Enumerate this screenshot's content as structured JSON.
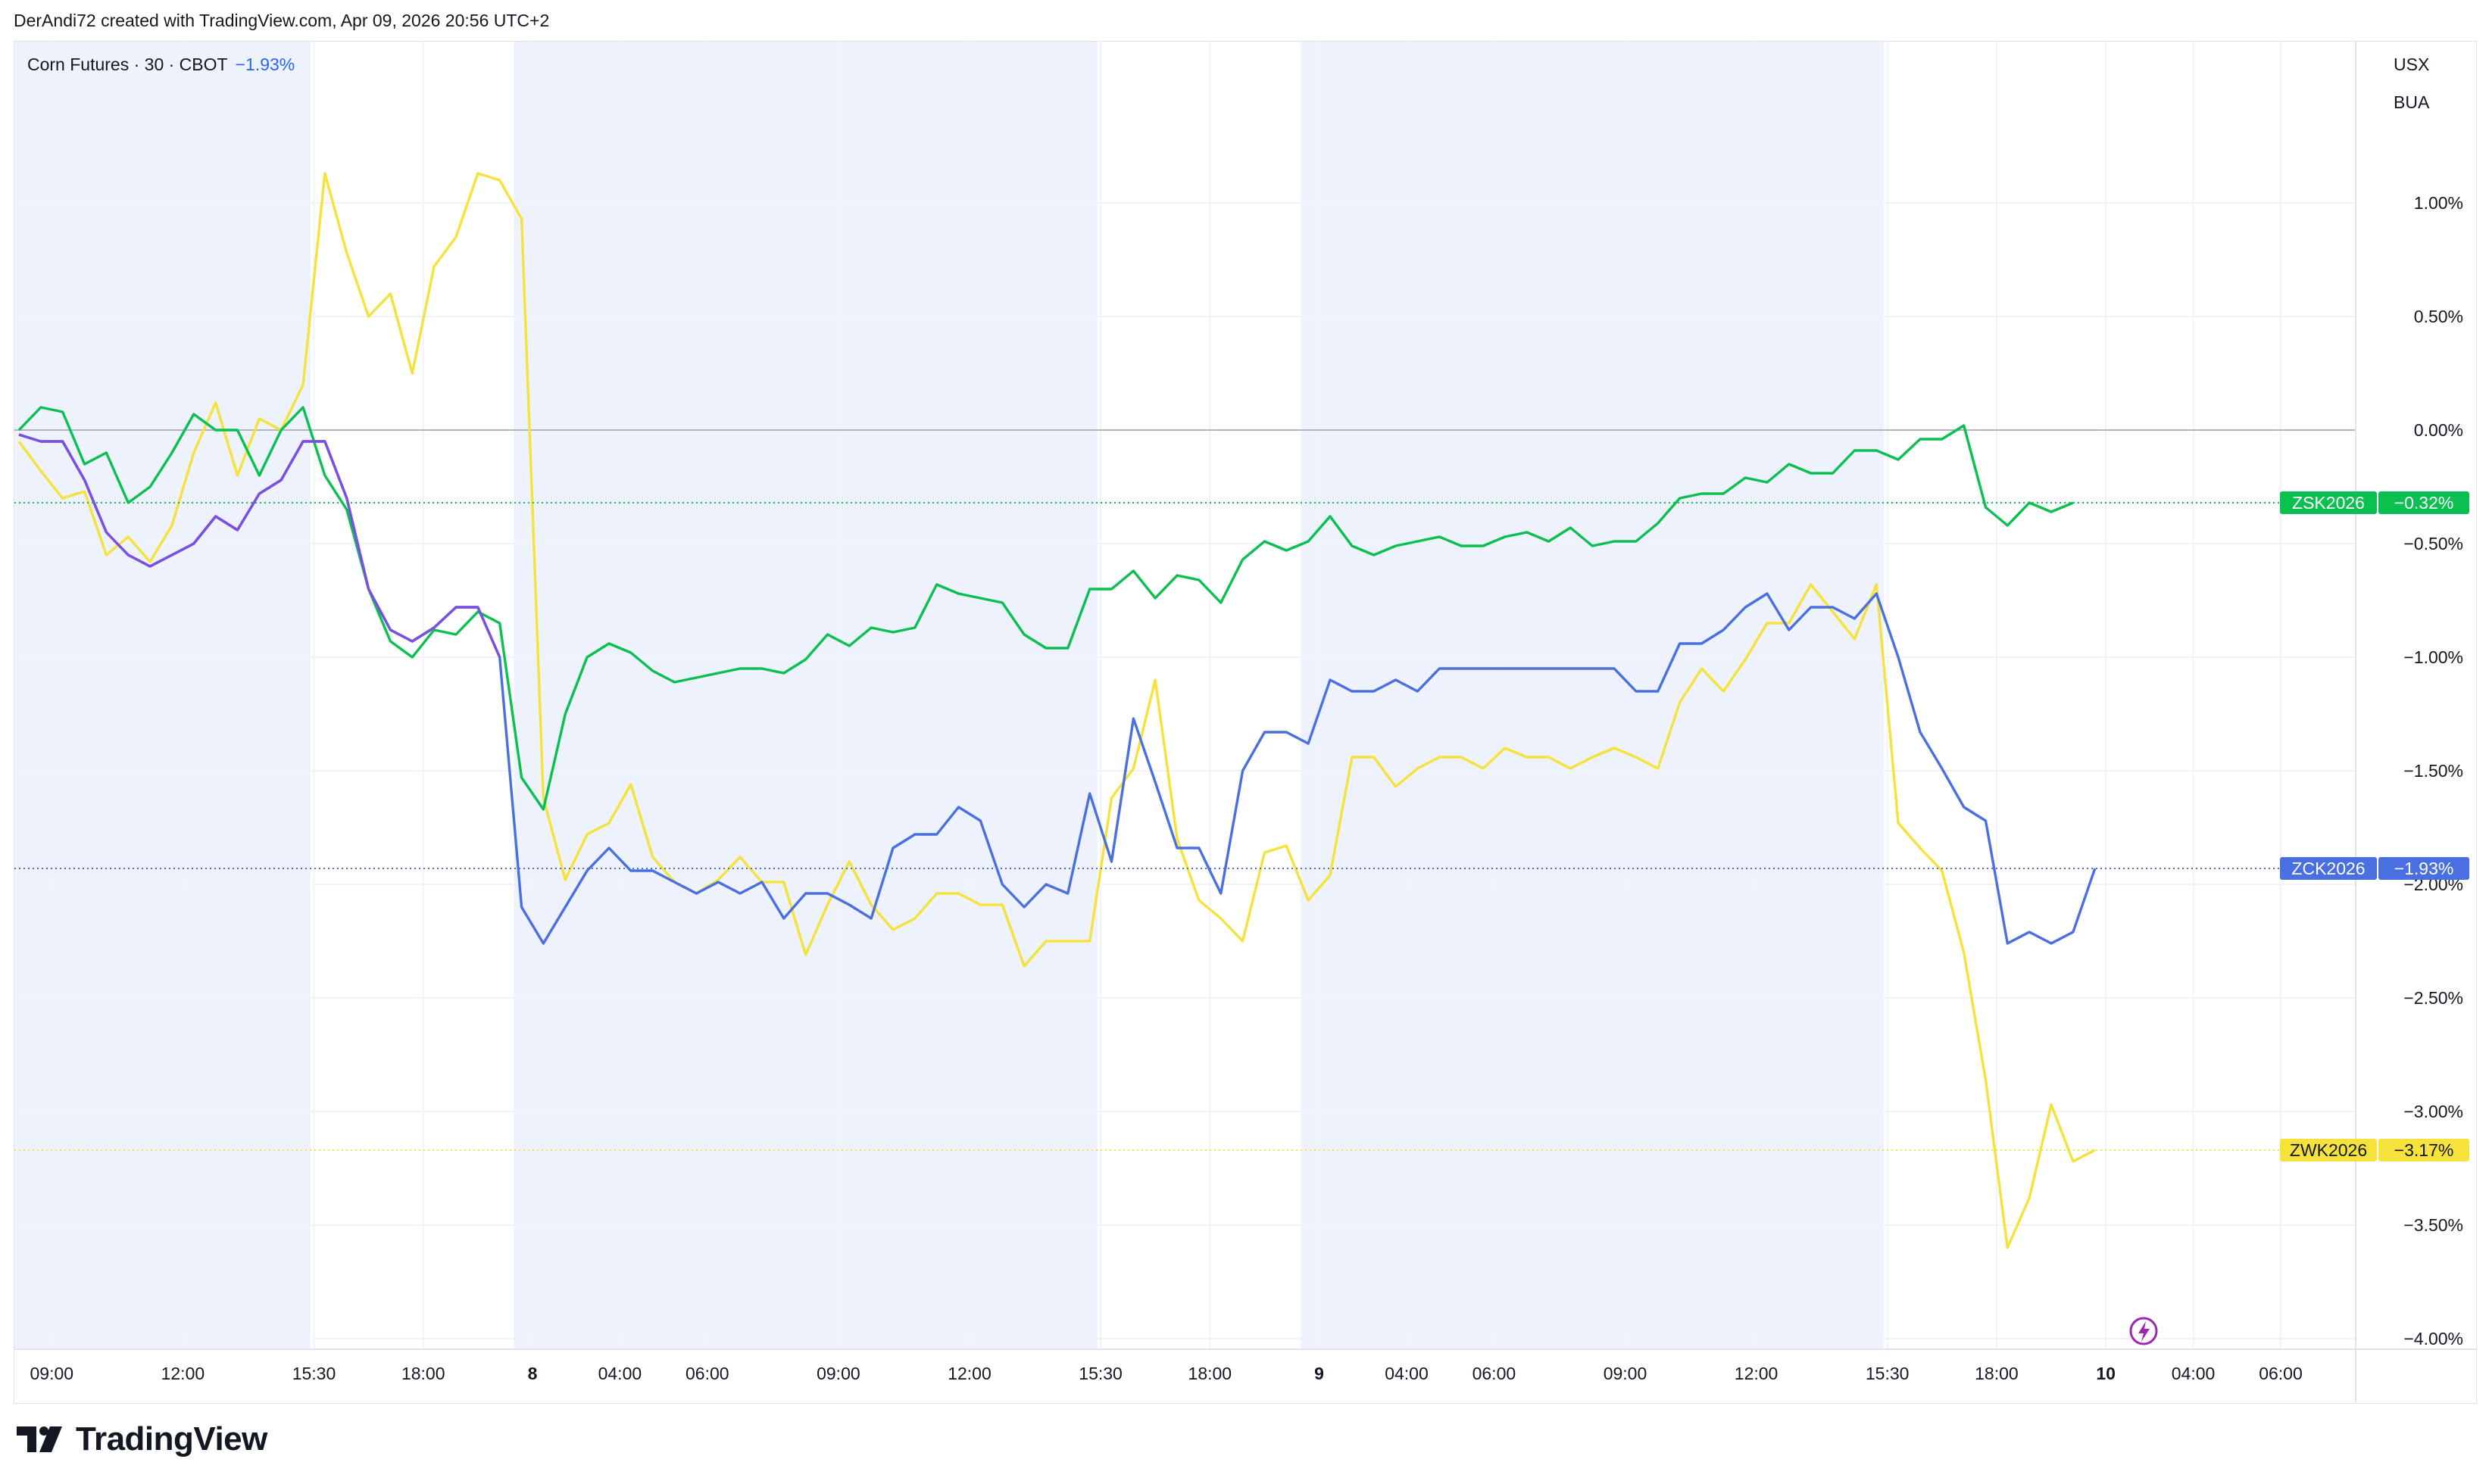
{
  "header": {
    "attribution": "DerAndi72 created with TradingView.com, Apr 09, 2026 20:56 UTC+2"
  },
  "legend": {
    "symbol": "Corn Futures · 30 · CBOT",
    "change": "−1.93%"
  },
  "units": [
    "USX",
    "BUA"
  ],
  "footer": {
    "brand": "TradingView"
  },
  "colors": {
    "ZSK2026": "#0bbf50",
    "ZCK2026": "#4a6fe0",
    "ZWK2026": "#f5e23a",
    "purple": "#7b4fe0",
    "session_shade": "#edf2fd",
    "grid": "#f0f3fa",
    "zero_line": "#b2b5be"
  },
  "chart_data": {
    "type": "line",
    "title": "Corn Futures · 30 · CBOT",
    "y_unit": "%",
    "ylim": [
      -4.05,
      1.3
    ],
    "y_ticks": [
      "1.00%",
      "0.50%",
      "0.00%",
      "−0.50%",
      "−1.00%",
      "−1.50%",
      "−2.00%",
      "−2.50%",
      "−3.00%",
      "−3.50%",
      "−4.00%"
    ],
    "y_tick_values": [
      1.0,
      0.5,
      0.0,
      -0.5,
      -1.0,
      -1.5,
      -2.0,
      -2.5,
      -3.0,
      -3.5,
      -4.0
    ],
    "x_index_range": [
      0,
      105
    ],
    "x_ticks": [
      {
        "label": "09:00",
        "i": 1.5,
        "bold": false
      },
      {
        "label": "12:00",
        "i": 7.5,
        "bold": false
      },
      {
        "label": "15:30",
        "i": 13.5,
        "bold": false
      },
      {
        "label": "18:00",
        "i": 18.5,
        "bold": false
      },
      {
        "label": "8",
        "i": 23.5,
        "bold": true
      },
      {
        "label": "04:00",
        "i": 27.5,
        "bold": false
      },
      {
        "label": "06:00",
        "i": 31.5,
        "bold": false
      },
      {
        "label": "09:00",
        "i": 37.5,
        "bold": false
      },
      {
        "label": "12:00",
        "i": 43.5,
        "bold": false
      },
      {
        "label": "15:30",
        "i": 49.5,
        "bold": false
      },
      {
        "label": "18:00",
        "i": 54.5,
        "bold": false
      },
      {
        "label": "9",
        "i": 59.5,
        "bold": true
      },
      {
        "label": "04:00",
        "i": 63.5,
        "bold": false
      },
      {
        "label": "06:00",
        "i": 67.5,
        "bold": false
      },
      {
        "label": "09:00",
        "i": 73.5,
        "bold": false
      },
      {
        "label": "12:00",
        "i": 79.5,
        "bold": false
      },
      {
        "label": "15:30",
        "i": 85.5,
        "bold": false
      },
      {
        "label": "18:00",
        "i": 90.5,
        "bold": false
      },
      {
        "label": "10",
        "i": 95.5,
        "bold": true
      },
      {
        "label": "04:00",
        "i": 99.5,
        "bold": false
      },
      {
        "label": "06:00",
        "i": 103.5,
        "bold": false
      }
    ],
    "sessions": [
      [
        0,
        13
      ],
      [
        23,
        49
      ],
      [
        59,
        85
      ]
    ],
    "series": [
      {
        "name": "ZSK2026",
        "last_label": "−0.32%",
        "values": [
          0.0,
          0.1,
          0.08,
          -0.15,
          -0.1,
          -0.32,
          -0.25,
          -0.1,
          0.07,
          0.0,
          0.0,
          -0.2,
          0.0,
          0.1,
          -0.2,
          -0.35,
          -0.7,
          -0.93,
          -1.0,
          -0.88,
          -0.9,
          -0.8,
          -0.85,
          -1.53,
          -1.67,
          -1.25,
          -1.0,
          -0.94,
          -0.98,
          -1.06,
          -1.11,
          -1.09,
          -1.07,
          -1.05,
          -1.05,
          -1.07,
          -1.01,
          -0.9,
          -0.95,
          -0.87,
          -0.89,
          -0.87,
          -0.68,
          -0.72,
          -0.74,
          -0.76,
          -0.9,
          -0.96,
          -0.96,
          -0.7,
          -0.7,
          -0.62,
          -0.74,
          -0.64,
          -0.66,
          -0.76,
          -0.57,
          -0.49,
          -0.53,
          -0.49,
          -0.38,
          -0.51,
          -0.55,
          -0.51,
          -0.49,
          -0.47,
          -0.51,
          -0.51,
          -0.47,
          -0.45,
          -0.49,
          -0.43,
          -0.51,
          -0.49,
          -0.49,
          -0.41,
          -0.3,
          -0.28,
          -0.28,
          -0.21,
          -0.23,
          -0.15,
          -0.19,
          -0.19,
          -0.09,
          -0.09,
          -0.13,
          -0.04,
          -0.04,
          0.02,
          -0.34,
          -0.42,
          -0.32,
          -0.36,
          -0.32
        ]
      },
      {
        "name": "ZCK2026",
        "last_label": "−1.93%",
        "values": [
          -0.02,
          -0.05,
          -0.05,
          -0.22,
          -0.45,
          -0.55,
          -0.6,
          -0.55,
          -0.5,
          -0.38,
          -0.44,
          -0.28,
          -0.22,
          -0.05,
          -0.05,
          -0.3,
          -0.7,
          -0.88,
          -0.93,
          -0.87,
          -0.78,
          -0.78,
          -1.0,
          -2.1,
          -2.26,
          -2.1,
          -1.94,
          -1.84,
          -1.94,
          -1.94,
          -1.99,
          -2.04,
          -1.99,
          -2.04,
          -1.99,
          -2.15,
          -2.04,
          -2.04,
          -2.09,
          -2.15,
          -1.84,
          -1.78,
          -1.78,
          -1.66,
          -1.72,
          -2.0,
          -2.1,
          -2.0,
          -2.04,
          -1.6,
          -1.9,
          -1.27,
          -1.55,
          -1.84,
          -1.84,
          -2.04,
          -1.5,
          -1.33,
          -1.33,
          -1.38,
          -1.1,
          -1.15,
          -1.15,
          -1.1,
          -1.15,
          -1.05,
          -1.05,
          -1.05,
          -1.05,
          -1.05,
          -1.05,
          -1.05,
          -1.05,
          -1.05,
          -1.15,
          -1.15,
          -0.94,
          -0.94,
          -0.88,
          -0.78,
          -0.72,
          -0.88,
          -0.78,
          -0.78,
          -0.83,
          -0.72,
          -1.0,
          -1.33,
          -1.49,
          -1.66,
          -1.72,
          -2.26,
          -2.21,
          -2.26,
          -2.21,
          -1.93
        ]
      },
      {
        "name": "ZWK2026",
        "last_label": "−3.17%",
        "values": [
          -0.05,
          -0.18,
          -0.3,
          -0.27,
          -0.55,
          -0.47,
          -0.58,
          -0.42,
          -0.1,
          0.12,
          -0.2,
          0.05,
          0.0,
          0.2,
          1.13,
          0.78,
          0.5,
          0.6,
          0.25,
          0.72,
          0.85,
          1.13,
          1.1,
          0.93,
          -1.62,
          -1.98,
          -1.78,
          -1.73,
          -1.56,
          -1.88,
          -1.99,
          -2.04,
          -1.98,
          -1.88,
          -1.99,
          -1.99,
          -2.31,
          -2.09,
          -1.9,
          -2.09,
          -2.2,
          -2.15,
          -2.04,
          -2.04,
          -2.09,
          -2.09,
          -2.36,
          -2.25,
          -2.25,
          -2.25,
          -1.62,
          -1.49,
          -1.1,
          -1.8,
          -2.07,
          -2.15,
          -2.25,
          -1.86,
          -1.83,
          -2.07,
          -1.96,
          -1.44,
          -1.44,
          -1.57,
          -1.49,
          -1.44,
          -1.44,
          -1.49,
          -1.4,
          -1.44,
          -1.44,
          -1.49,
          -1.44,
          -1.4,
          -1.44,
          -1.49,
          -1.2,
          -1.05,
          -1.15,
          -1.01,
          -0.85,
          -0.85,
          -0.68,
          -0.8,
          -0.92,
          -0.68,
          -1.73,
          -1.84,
          -1.94,
          -2.3,
          -2.86,
          -3.6,
          -3.38,
          -2.97,
          -3.22,
          -3.17
        ]
      }
    ]
  }
}
